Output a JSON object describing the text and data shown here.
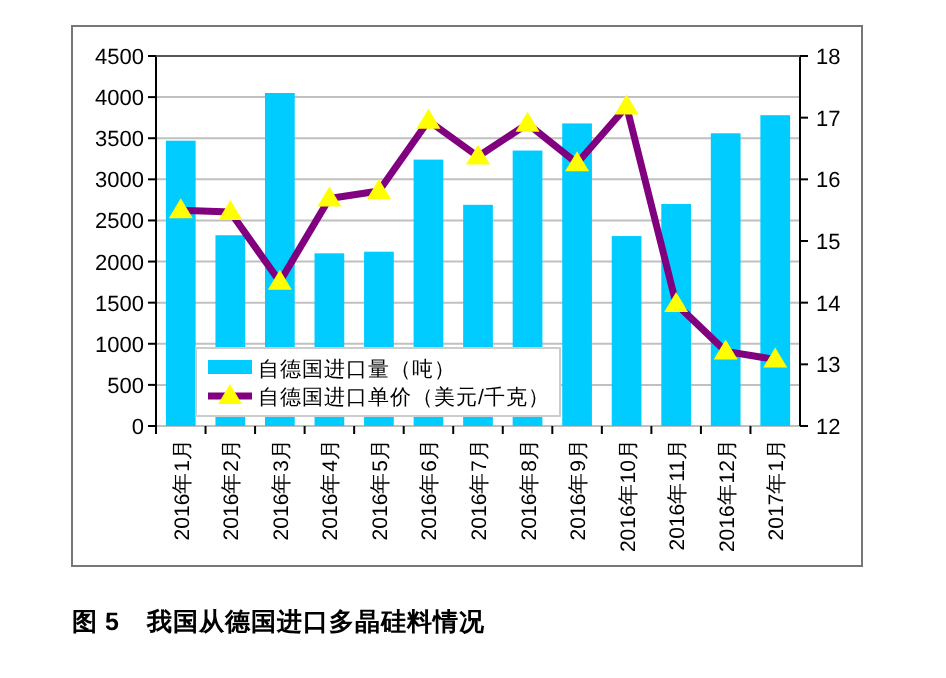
{
  "chart_data": {
    "type": "bar",
    "title": "图 5    我国从德国进口多晶硅料情况",
    "categories": [
      "2016年1月",
      "2016年2月",
      "2016年3月",
      "2016年4月",
      "2016年5月",
      "2016年6月",
      "2016年7月",
      "2016年8月",
      "2016年9月",
      "2016年10月",
      "2016年11月",
      "2016年12月",
      "2017年1月"
    ],
    "series": [
      {
        "name": "自德国进口量（吨）",
        "color": "#00ccff",
        "values": [
          3470,
          2320,
          4050,
          2100,
          2120,
          3240,
          2690,
          3350,
          3680,
          2310,
          2700,
          3560,
          3780
        ]
      },
      {
        "name": "自德国进口单价（美元/千克）",
        "type": "line",
        "axis": "y2",
        "color": "#800080",
        "marker": "triangle",
        "values": [
          15.5,
          15.47,
          14.34,
          15.69,
          15.81,
          16.95,
          16.37,
          16.9,
          16.26,
          17.18,
          13.98,
          13.21,
          13.08
        ]
      }
    ],
    "ylim": [
      0,
      4500
    ],
    "yticks": [
      0,
      500,
      1000,
      1500,
      2000,
      2500,
      3000,
      3500,
      4000,
      4500
    ],
    "y2lim": [
      12,
      18
    ],
    "y2ticks": [
      12,
      13,
      14,
      15,
      16,
      17,
      18
    ],
    "grid": "y",
    "legend": "bottom left"
  }
}
